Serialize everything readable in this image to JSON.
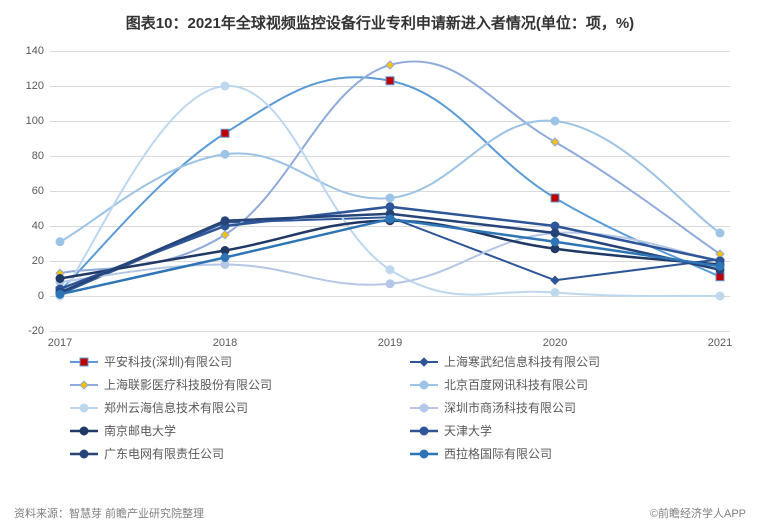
{
  "title": "图表10：2021年全球视频监控设备行业专利申请新进入者情况(单位：项，%)",
  "source_left": "资料来源：智慧芽 前瞻产业研究院整理",
  "source_right": "©前瞻经济学人APP",
  "chart": {
    "type": "line",
    "background_color": "#ffffff",
    "grid_color": "#d9d9d9",
    "label_color": "#595959",
    "label_fontsize": 11,
    "ylim": [
      -20,
      140
    ],
    "ytick_step": 20,
    "x_categories": [
      "2017",
      "2018",
      "2019",
      "2020",
      "2021"
    ],
    "series": [
      {
        "name": "平安科技(深圳)有限公司",
        "legend_label": "平安科技(深圳)有限公司",
        "color": "#5b9bd5",
        "marker": "square",
        "marker_fill": "#c00000",
        "values": [
          3,
          93,
          123,
          56,
          11
        ],
        "smooth": true,
        "width": 2
      },
      {
        "name": "上海寒武纪信息科技有限公司",
        "legend_label": "上海寒武纪信息科技有限公司",
        "color": "#2e5597",
        "marker": "diamond",
        "marker_fill": "#2e5597",
        "values": [
          1,
          42,
          45,
          9,
          21
        ],
        "smooth": false,
        "width": 2
      },
      {
        "name": "上海联影医疗科技股份有限公司",
        "legend_label": "上海联影医疗科技股份有限公司",
        "color": "#8faadc",
        "marker": "diamond",
        "marker_fill": "#ffc000",
        "values": [
          13,
          35,
          132,
          88,
          24
        ],
        "smooth": true,
        "width": 2
      },
      {
        "name": "北京百度网讯科技有限公司",
        "legend_label": "北京百度网讯科技有限公司",
        "color": "#9dc3e6",
        "marker": "circle",
        "marker_fill": "#9dc3e6",
        "values": [
          31,
          81,
          56,
          100,
          36
        ],
        "smooth": true,
        "width": 2
      },
      {
        "name": "郑州云海信息技术有限公司",
        "legend_label": "郑州云海信息技术有限公司",
        "color": "#bdd7ee",
        "marker": "circle",
        "marker_fill": "#bdd7ee",
        "values": [
          0,
          120,
          15,
          2,
          0
        ],
        "smooth": true,
        "width": 2
      },
      {
        "name": "深圳市商汤科技有限公司",
        "legend_label": "深圳市商汤科技有限公司",
        "color": "#b4c7e7",
        "marker": "circle",
        "marker_fill": "#b4c7e7",
        "values": [
          8,
          18,
          7,
          36,
          20
        ],
        "smooth": true,
        "width": 2
      },
      {
        "name": "南京邮电大学",
        "legend_label": "南京邮电大学",
        "color": "#1f3864",
        "marker": "circle",
        "marker_fill": "#1f3864",
        "values": [
          10,
          26,
          43,
          27,
          18
        ],
        "smooth": true,
        "width": 2.5
      },
      {
        "name": "天津大学",
        "legend_label": "天津大学",
        "color": "#2e5597",
        "marker": "circle",
        "marker_fill": "#2e5597",
        "values": [
          4,
          40,
          51,
          40,
          20
        ],
        "smooth": false,
        "width": 2.5
      },
      {
        "name": "广东电网有限责任公司",
        "legend_label": "广东电网有限责任公司",
        "color": "#264478",
        "marker": "circle",
        "marker_fill": "#264478",
        "values": [
          2,
          43,
          47,
          36,
          15
        ],
        "smooth": false,
        "width": 2.5
      },
      {
        "name": "西拉格国际有限公司",
        "legend_label": "西拉格国际有限公司",
        "color": "#2e75b6",
        "marker": "circle",
        "marker_fill": "#2e75b6",
        "values": [
          1,
          22,
          44,
          31,
          17
        ],
        "smooth": false,
        "width": 2.5
      }
    ]
  }
}
